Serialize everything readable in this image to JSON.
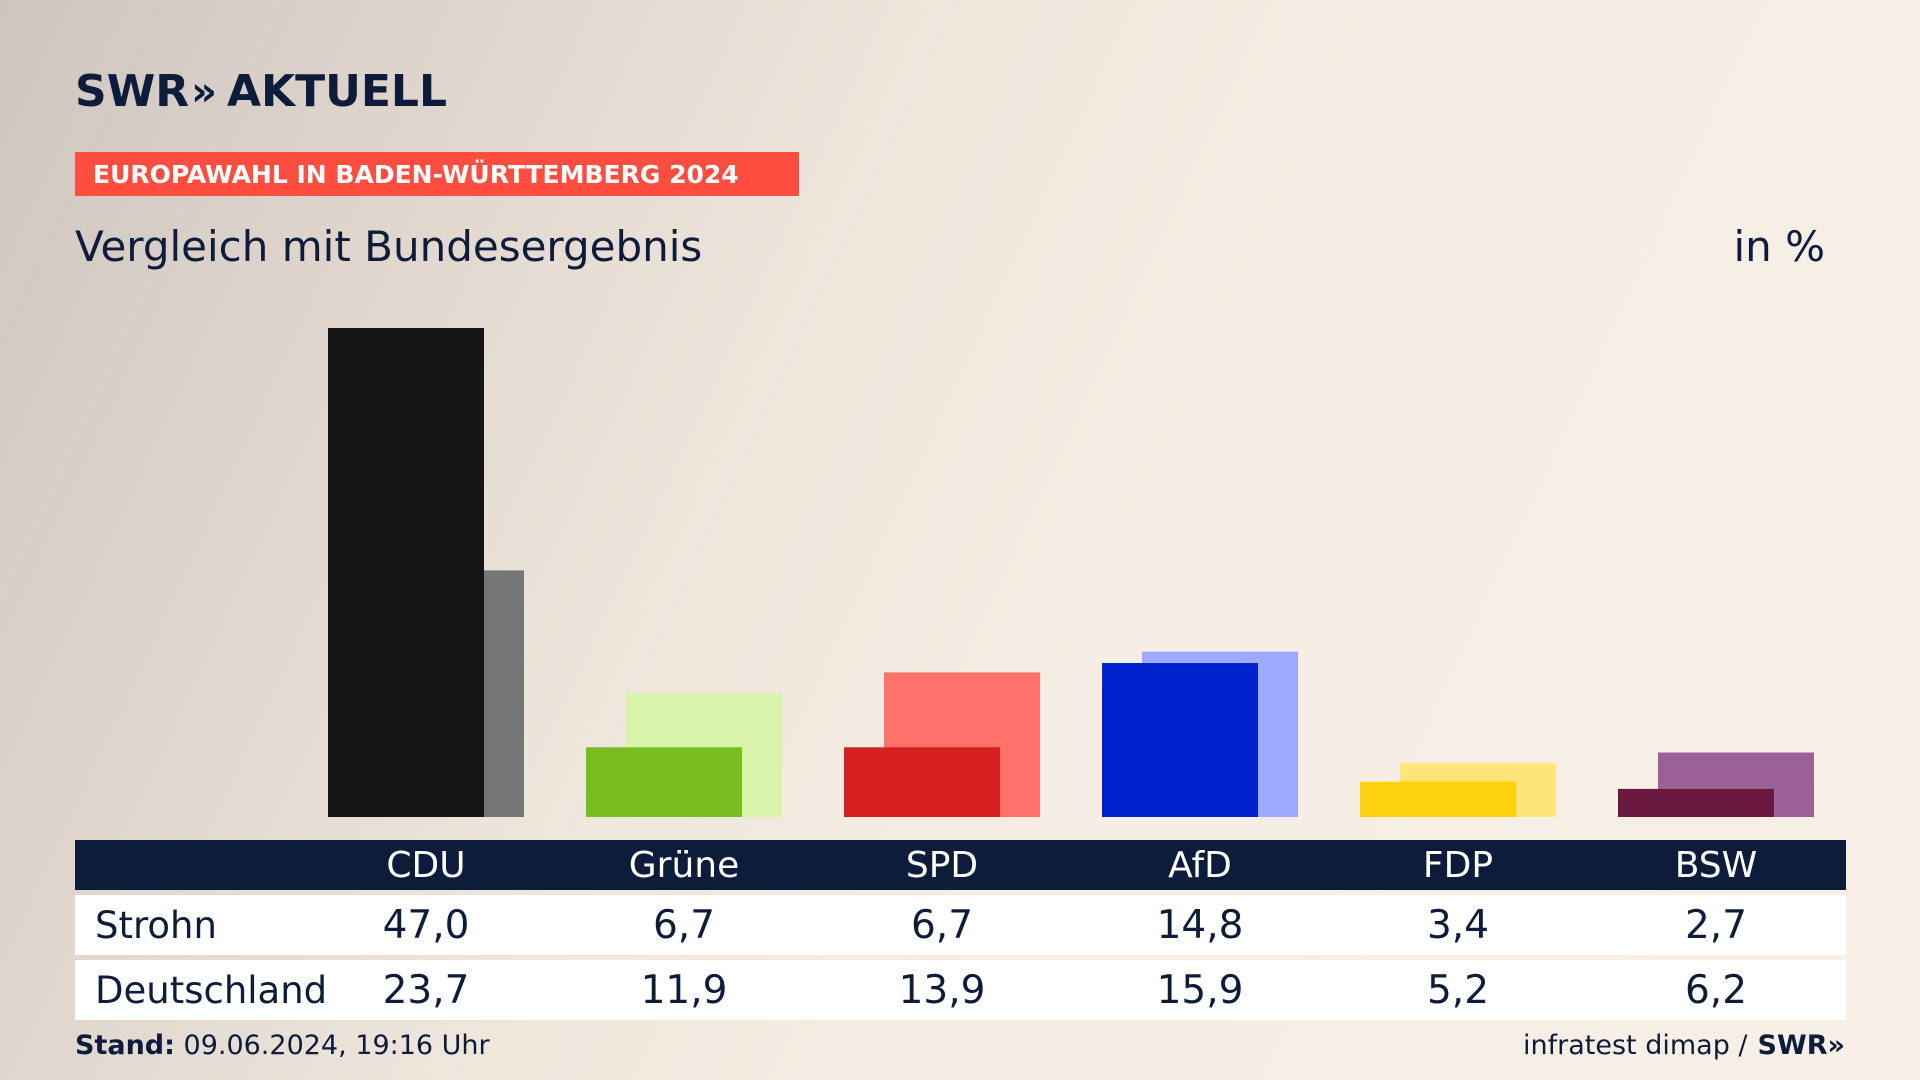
{
  "brand": {
    "logo_swr": "SWR",
    "logo_chevrons": "»",
    "logo_aktuell": "AKTUELL"
  },
  "banner": "EUROPAWAHL IN BADEN-WÜRTTEMBERG 2024",
  "subtitle": "Vergleich mit Bundesergebnis",
  "unit": "in %",
  "footer": {
    "stand_label": "Stand:",
    "stand_value": "09.06.2024, 19:16 Uhr",
    "source": "infratest dimap /",
    "source_brand": "SWR»"
  },
  "table": {
    "rows": [
      {
        "label": "Strohn",
        "values": [
          "47,0",
          "6,7",
          "6,7",
          "14,8",
          "3,4",
          "2,7"
        ]
      },
      {
        "label": "Deutschland",
        "values": [
          "23,7",
          "11,9",
          "13,9",
          "15,9",
          "5,2",
          "6,2"
        ]
      }
    ]
  },
  "chart_data": {
    "type": "bar",
    "categories": [
      "CDU",
      "Grüne",
      "SPD",
      "AfD",
      "FDP",
      "BSW"
    ],
    "series": [
      {
        "name": "Strohn",
        "values": [
          47.0,
          6.7,
          6.7,
          14.8,
          3.4,
          2.7
        ],
        "colors": [
          "#151515",
          "#78be20",
          "#d61f1f",
          "#0022cc",
          "#fcd20f",
          "#6b1840"
        ]
      },
      {
        "name": "Deutschland",
        "values": [
          23.7,
          11.9,
          13.9,
          15.9,
          5.2,
          6.2
        ],
        "colors": [
          "#767676",
          "#d7f4aa",
          "#ff726a",
          "#9eaaff",
          "#ffe57a",
          "#9b6096"
        ]
      }
    ],
    "ylim": [
      0,
      47.0
    ],
    "grid": false,
    "legend": "table-below"
  }
}
